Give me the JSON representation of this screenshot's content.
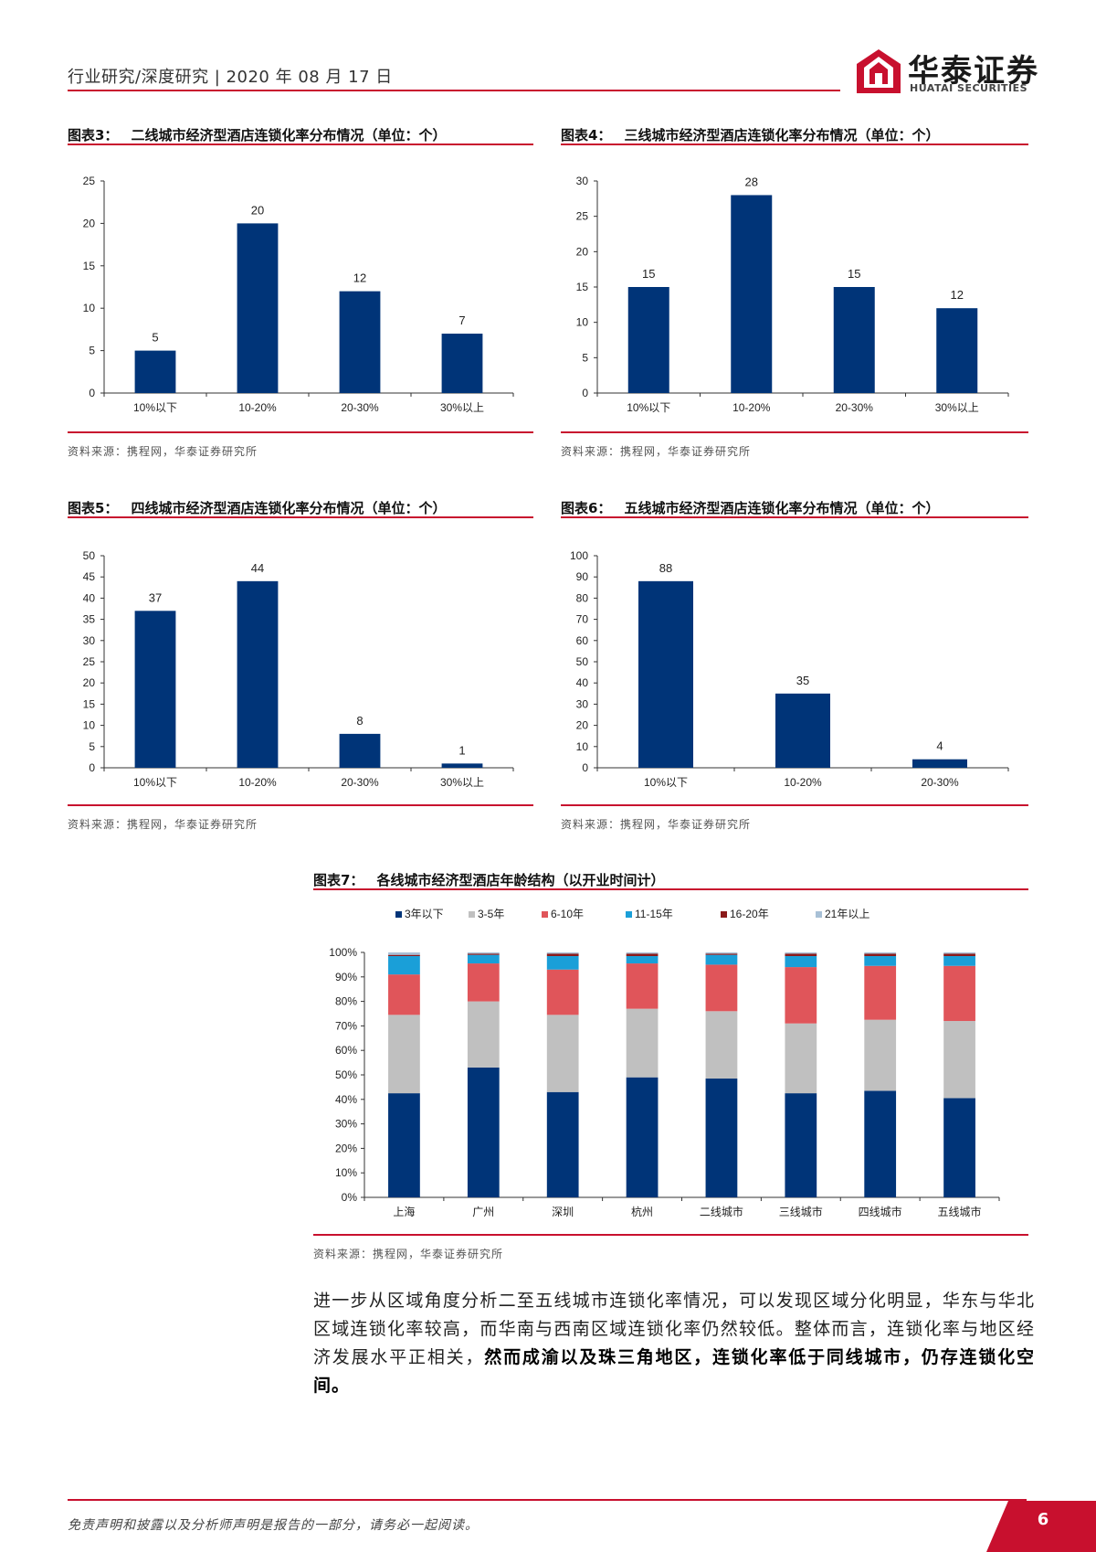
{
  "header": {
    "text": "行业研究/深度研究 | 2020 年 08 月 17 日",
    "logo_cn": "华泰证券",
    "logo_en": "HUATAI SECURITIES"
  },
  "colors": {
    "navy": "#003478",
    "red": "#c8102e",
    "gray": "#c0c0c0",
    "salmon": "#e0555a",
    "cyan": "#1a9fd8",
    "darkred": "#8b1a1a",
    "lightgray": "#a8c0d6"
  },
  "figures": [
    {
      "label": "图表3：",
      "title": "二线城市经济型酒店连锁化率分布情况（单位：个）",
      "source": "资料来源：携程网，华泰证券研究所"
    },
    {
      "label": "图表4：",
      "title": "三线城市经济型酒店连锁化率分布情况（单位：个）",
      "source": "资料来源：携程网，华泰证券研究所"
    },
    {
      "label": "图表5：",
      "title": "四线城市经济型酒店连锁化率分布情况（单位：个）",
      "source": "资料来源：携程网，华泰证券研究所"
    },
    {
      "label": "图表6：",
      "title": "五线城市经济型酒店连锁化率分布情况（单位：个）",
      "source": "资料来源：携程网，华泰证券研究所"
    },
    {
      "label": "图表7：",
      "title": "各线城市经济型酒店年龄结构（以开业时间计）",
      "source": "资料来源：携程网，华泰证券研究所"
    }
  ],
  "chart_data": [
    {
      "type": "bar",
      "title": "二线城市经济型酒店连锁化率分布情况（单位：个）",
      "categories": [
        "10%以下",
        "10-20%",
        "20-30%",
        "30%以上"
      ],
      "values": [
        5,
        20,
        12,
        7
      ],
      "ylim": [
        0,
        25
      ],
      "yticks": [
        0,
        5,
        10,
        15,
        20,
        25
      ]
    },
    {
      "type": "bar",
      "title": "三线城市经济型酒店连锁化率分布情况（单位：个）",
      "categories": [
        "10%以下",
        "10-20%",
        "20-30%",
        "30%以上"
      ],
      "values": [
        15,
        28,
        15,
        12
      ],
      "ylim": [
        0,
        30
      ],
      "yticks": [
        0,
        5,
        10,
        15,
        20,
        25,
        30
      ]
    },
    {
      "type": "bar",
      "title": "四线城市经济型酒店连锁化率分布情况（单位：个）",
      "categories": [
        "10%以下",
        "10-20%",
        "20-30%",
        "30%以上"
      ],
      "values": [
        37,
        44,
        8,
        1
      ],
      "ylim": [
        0,
        50
      ],
      "yticks": [
        0,
        5,
        10,
        15,
        20,
        25,
        30,
        35,
        40,
        45,
        50
      ]
    },
    {
      "type": "bar",
      "title": "五线城市经济型酒店连锁化率分布情况（单位：个）",
      "categories": [
        "10%以下",
        "10-20%",
        "20-30%"
      ],
      "values": [
        88,
        35,
        4
      ],
      "ylim": [
        0,
        100
      ],
      "yticks": [
        0,
        10,
        20,
        30,
        40,
        50,
        60,
        70,
        80,
        90,
        100
      ]
    },
    {
      "type": "bar",
      "stacked": true,
      "title": "各线城市经济型酒店年龄结构（以开业时间计）",
      "categories": [
        "上海",
        "广州",
        "深圳",
        "杭州",
        "二线城市",
        "三线城市",
        "四线城市",
        "五线城市"
      ],
      "ylim": [
        0,
        100
      ],
      "yticks": [
        "0%",
        "10%",
        "20%",
        "30%",
        "40%",
        "50%",
        "60%",
        "70%",
        "80%",
        "90%",
        "100%"
      ],
      "legend_position": "top",
      "series": [
        {
          "name": "3年以下",
          "color": "#003478",
          "values": [
            42.5,
            53,
            43,
            49,
            48.5,
            42.5,
            43.5,
            40.5
          ]
        },
        {
          "name": "3-5年",
          "color": "#c0c0c0",
          "values": [
            32,
            27,
            31.5,
            28,
            27.5,
            28.5,
            29,
            31.5
          ]
        },
        {
          "name": "6-10年",
          "color": "#e0555a",
          "values": [
            16.5,
            15.5,
            18.5,
            18.5,
            19,
            23,
            22,
            22.5
          ]
        },
        {
          "name": "11-15年",
          "color": "#1a9fd8",
          "values": [
            7.5,
            3.5,
            5.5,
            3,
            4,
            4.5,
            4,
            4
          ]
        },
        {
          "name": "16-20年",
          "color": "#8b1a1a",
          "values": [
            0.5,
            0.5,
            1,
            1,
            0.5,
            1,
            1,
            1
          ]
        },
        {
          "name": "21年以上",
          "color": "#a8c0d6",
          "values": [
            1,
            0.5,
            0.5,
            0.5,
            0.5,
            0.5,
            0.5,
            0.5
          ]
        }
      ]
    }
  ],
  "paragraph": {
    "normal": "进一步从区域角度分析二至五线城市连锁化率情况，可以发现区域分化明显，华东与华北区域连锁化率较高，而华南与西南区域连锁化率仍然较低。整体而言，连锁化率与地区经济发展水平正相关，",
    "bold": "然而成渝以及珠三角地区，连锁化率低于同线城市，仍存连锁化空间。"
  },
  "footer": {
    "text": "免责声明和披露以及分析师声明是报告的一部分，请务必一起阅读。",
    "page": "6"
  }
}
